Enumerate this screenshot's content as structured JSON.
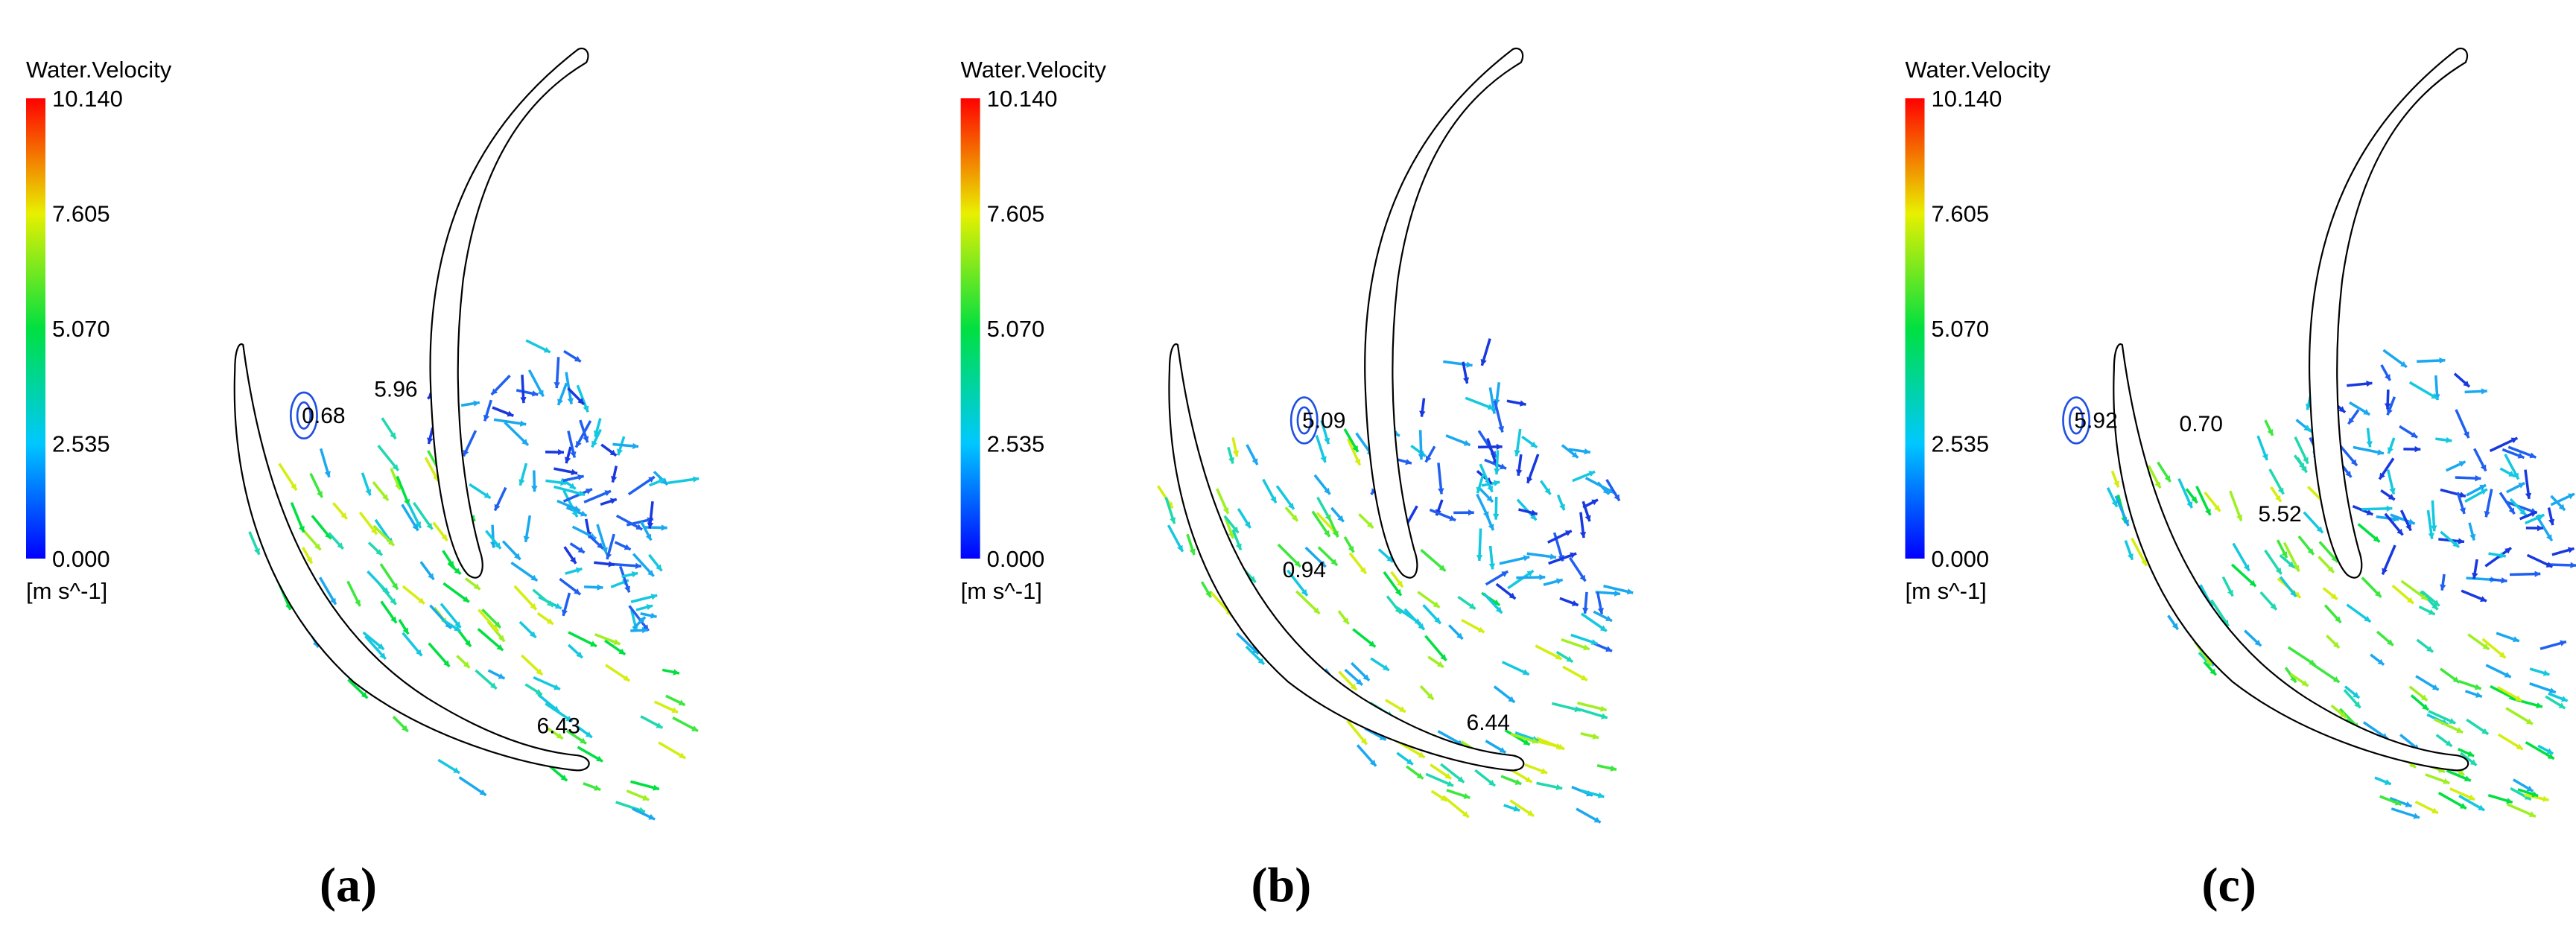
{
  "panels": [
    {
      "legend": {
        "title": "Water.Velocity",
        "ticks": [
          "10.140",
          "7.605",
          "5.070",
          "2.535",
          "0.000"
        ],
        "unit": "[m s^-1]"
      },
      "annotations": [
        "0.68",
        "5.96",
        "6.43"
      ],
      "caption": "(a)"
    },
    {
      "legend": {
        "title": "Water.Velocity",
        "ticks": [
          "10.140",
          "7.605",
          "5.070",
          "2.535",
          "0.000"
        ],
        "unit": "[m s^-1]"
      },
      "annotations": [
        "5.09",
        "0.94",
        "6.44"
      ],
      "caption": "(b)"
    },
    {
      "legend": {
        "title": "Water.Velocity",
        "ticks": [
          "10.140",
          "7.605",
          "5.070",
          "2.535",
          "0.000"
        ],
        "unit": "[m s^-1]"
      },
      "annotations": [
        "5.92",
        "0.70",
        "5.52"
      ],
      "caption": "(c)"
    }
  ]
}
